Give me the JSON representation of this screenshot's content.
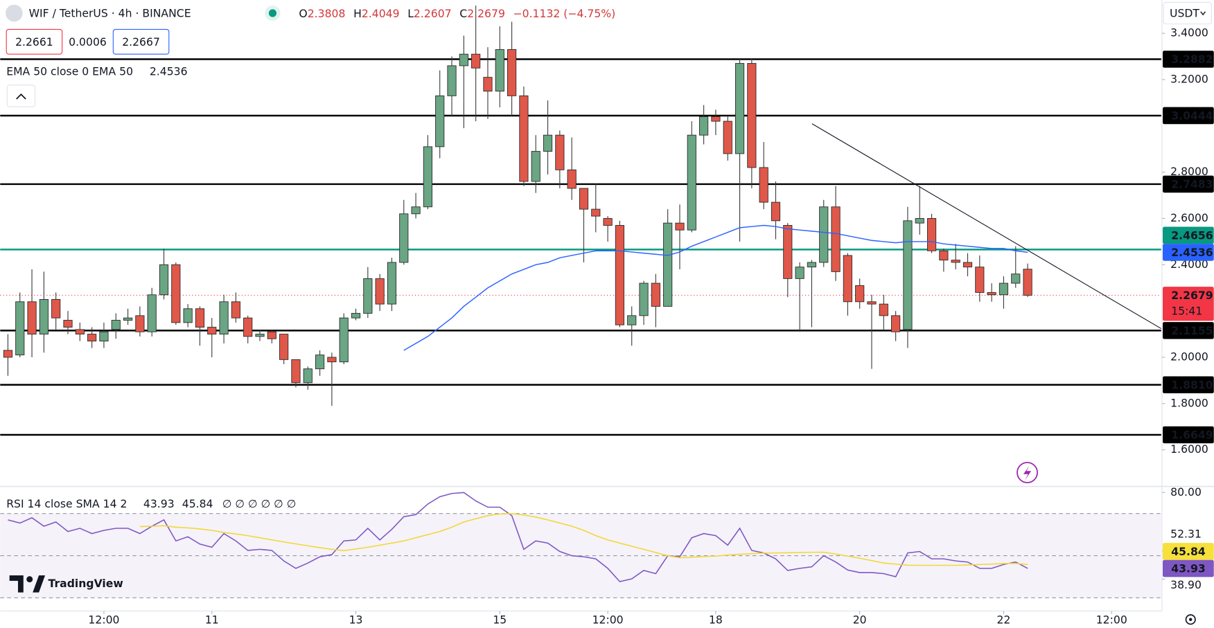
{
  "header": {
    "symbol": "WIF / TetherUS · 4h · BINANCE",
    "ohlc_keys": [
      "O",
      "H",
      "L",
      "C"
    ],
    "change": "−0.1132 (−4.75%)",
    "sell": "2.2661",
    "spread": "0.0006",
    "buy": "2.2667",
    "currency": "USDT",
    "logo": "TradingView"
  },
  "chart_data": [
    {
      "type": "candlestick",
      "open": [
        2.03,
        2.01,
        2.24,
        2.1,
        2.25,
        2.16,
        2.12,
        2.1,
        2.07,
        2.12,
        2.16,
        2.18,
        2.11,
        2.27,
        2.4,
        2.15,
        2.21,
        2.13,
        2.1,
        2.24,
        2.17,
        2.09,
        2.11,
        2.1,
        1.99,
        1.89,
        1.95,
        2.0,
        1.98,
        2.17,
        2.19,
        2.34,
        2.23,
        2.41,
        2.62,
        2.65,
        2.91,
        3.13,
        3.26,
        3.31,
        3.21,
        3.15,
        3.33,
        3.13,
        2.76,
        2.89,
        2.96,
        2.81,
        2.73,
        2.64,
        2.6,
        2.57,
        2.14,
        2.18,
        2.32,
        2.22,
        2.58,
        2.55,
        2.96,
        3.04,
        3.02,
        2.88,
        3.27,
        2.82,
        2.67,
        2.57,
        2.34,
        2.39,
        2.41,
        2.65,
        2.44,
        2.31,
        2.24,
        2.23,
        2.18,
        2.12,
        2.58,
        2.6,
        2.46,
        2.42,
        2.41,
        2.39,
        2.28,
        2.27,
        2.32,
        2.3808
      ],
      "high": [
        2.1,
        2.28,
        2.38,
        2.37,
        2.28,
        2.2,
        2.15,
        2.13,
        2.15,
        2.19,
        2.21,
        2.22,
        2.3,
        2.47,
        2.41,
        2.23,
        2.22,
        2.17,
        2.27,
        2.28,
        2.18,
        2.12,
        2.12,
        2.1,
        1.99,
        1.96,
        2.03,
        2.02,
        2.19,
        2.21,
        2.39,
        2.36,
        2.43,
        2.68,
        2.71,
        2.96,
        3.24,
        3.3,
        3.39,
        3.52,
        3.34,
        3.43,
        3.45,
        3.17,
        2.96,
        3.11,
        2.98,
        2.95,
        2.73,
        2.75,
        2.61,
        2.59,
        2.22,
        2.33,
        2.36,
        2.64,
        2.66,
        3.02,
        3.09,
        3.07,
        3.04,
        3.29,
        3.29,
        2.93,
        2.76,
        2.58,
        2.41,
        2.42,
        2.68,
        2.74,
        2.45,
        2.34,
        2.27,
        2.27,
        2.2,
        2.65,
        2.74,
        2.62,
        2.47,
        2.49,
        2.45,
        2.44,
        2.32,
        2.35,
        2.48,
        2.4049
      ],
      "low": [
        1.92,
        2.0,
        2.0,
        2.02,
        2.12,
        2.1,
        2.07,
        2.04,
        2.04,
        2.08,
        2.14,
        2.09,
        2.09,
        2.25,
        2.14,
        2.13,
        2.05,
        2.0,
        2.06,
        2.15,
        2.06,
        2.07,
        2.06,
        1.97,
        1.87,
        1.86,
        1.92,
        1.79,
        1.97,
        2.16,
        2.17,
        2.2,
        2.2,
        2.4,
        2.6,
        2.64,
        2.86,
        3.04,
        2.99,
        3.02,
        3.03,
        3.08,
        3.04,
        2.74,
        2.71,
        2.79,
        2.73,
        2.68,
        2.41,
        2.54,
        2.5,
        2.13,
        2.05,
        2.14,
        2.13,
        2.22,
        2.38,
        2.54,
        2.92,
        2.96,
        2.85,
        2.5,
        2.73,
        2.64,
        2.51,
        2.26,
        2.11,
        2.13,
        2.39,
        2.33,
        2.18,
        2.21,
        1.95,
        2.12,
        2.07,
        2.04,
        2.53,
        2.45,
        2.37,
        2.38,
        2.35,
        2.24,
        2.24,
        2.21,
        2.3,
        2.2607
      ],
      "close": [
        2.0,
        2.24,
        2.1,
        2.25,
        2.17,
        2.13,
        2.1,
        2.07,
        2.11,
        2.16,
        2.17,
        2.11,
        2.27,
        2.4,
        2.15,
        2.21,
        2.13,
        2.1,
        2.24,
        2.17,
        2.09,
        2.1,
        2.08,
        1.99,
        1.89,
        1.95,
        2.01,
        1.98,
        2.17,
        2.19,
        2.34,
        2.23,
        2.41,
        2.62,
        2.65,
        2.91,
        3.13,
        3.26,
        3.31,
        3.25,
        3.15,
        3.33,
        3.13,
        2.76,
        2.89,
        2.96,
        2.81,
        2.73,
        2.64,
        2.61,
        2.57,
        2.14,
        2.18,
        2.32,
        2.22,
        2.58,
        2.55,
        2.96,
        3.04,
        3.02,
        2.88,
        3.27,
        2.82,
        2.67,
        2.59,
        2.34,
        2.39,
        2.41,
        2.65,
        2.37,
        2.24,
        2.24,
        2.23,
        2.18,
        2.11,
        2.59,
        2.6,
        2.46,
        2.42,
        2.41,
        2.39,
        2.28,
        2.27,
        2.32,
        2.36,
        2.2679
      ],
      "up_color": "#6aa584",
      "down_color": "#e0584a",
      "ema": {
        "name": "EMA 50 close 0 EMA 50",
        "color": "#2962ff",
        "values": [
          null,
          null,
          null,
          null,
          null,
          null,
          null,
          null,
          null,
          null,
          null,
          null,
          null,
          null,
          null,
          null,
          null,
          null,
          null,
          null,
          null,
          null,
          null,
          null,
          null,
          null,
          null,
          null,
          null,
          null,
          null,
          null,
          null,
          2.03,
          2.06,
          2.09,
          2.13,
          2.17,
          2.22,
          2.26,
          2.3,
          2.33,
          2.36,
          2.38,
          2.4,
          2.41,
          2.43,
          2.44,
          2.45,
          2.46,
          2.46,
          2.46,
          2.455,
          2.45,
          2.445,
          2.44,
          2.455,
          2.48,
          2.5,
          2.52,
          2.54,
          2.56,
          2.565,
          2.57,
          2.565,
          2.555,
          2.55,
          2.545,
          2.54,
          2.535,
          2.525,
          2.515,
          2.505,
          2.5,
          2.495,
          2.5,
          2.5,
          2.5,
          2.49,
          2.485,
          2.48,
          2.475,
          2.47,
          2.47,
          2.46,
          2.4536
        ]
      },
      "levels": [
        {
          "value": 3.2882,
          "label": "3.2882"
        },
        {
          "value": 3.0444,
          "label": "3.0444"
        },
        {
          "value": 2.7483,
          "label": "2.7483"
        },
        {
          "value": 2.1155,
          "label": "2.1155"
        },
        {
          "value": 1.881,
          "label": "1.8810"
        },
        {
          "value": 1.6649,
          "label": "1.6649"
        }
      ],
      "level_color": "#000000",
      "support_line": {
        "value": 2.4656,
        "color": "#089981"
      },
      "last_price_color": "#f23645",
      "countdown": "15:41",
      "trendline": {
        "x": [
          67.03,
          96.13
        ],
        "y": [
          3.009,
          2.124
        ]
      },
      "xlim": [
        -0.645,
        96.13
      ],
      "xticks": [
        {
          "value": 8,
          "label": "12:00"
        },
        {
          "value": 17,
          "label": "11"
        },
        {
          "value": 29,
          "label": "13"
        },
        {
          "value": 41,
          "label": "15"
        },
        {
          "value": 50,
          "label": "12:00"
        },
        {
          "value": 59,
          "label": "18"
        },
        {
          "value": 71,
          "label": "20"
        },
        {
          "value": 83,
          "label": "22"
        },
        {
          "value": 92,
          "label": "12:00"
        }
      ],
      "ylim": [
        1.445,
        3.544
      ],
      "yticks": [
        {
          "value": 3.4,
          "label": "3.4000"
        },
        {
          "value": 3.2,
          "label": "3.2000"
        },
        {
          "value": 2.8,
          "label": "2.8000"
        },
        {
          "value": 2.6,
          "label": "2.6000"
        },
        {
          "value": 2.4,
          "label": "2.4000"
        },
        {
          "value": 2.0,
          "label": "2.0000"
        },
        {
          "value": 1.8,
          "label": "1.8000"
        },
        {
          "value": 1.6,
          "label": "1.6000"
        }
      ]
    },
    {
      "type": "line",
      "title": "RSI 14 close SMA 14 2",
      "extra": "∅ ∅ ∅ ∅ ∅ ∅",
      "series": [
        {
          "color": "#7e57c2",
          "values": [
            67,
            65.5,
            68,
            64,
            66,
            61.5,
            63,
            60.5,
            62,
            63,
            63,
            60.5,
            64,
            67,
            57,
            59,
            55.5,
            54,
            60.5,
            57,
            52.5,
            53,
            52.5,
            47.5,
            44,
            46.5,
            49.5,
            50.5,
            57,
            57.5,
            63,
            57.5,
            62.5,
            68.5,
            69.5,
            74.5,
            78,
            79.5,
            80,
            76,
            73,
            73,
            69,
            53,
            57,
            56,
            52,
            50,
            49.5,
            48.5,
            44,
            37.7,
            39,
            43,
            41.5,
            50,
            49.5,
            58.5,
            60.5,
            59.5,
            55,
            63,
            52.5,
            51.3,
            48.5,
            43,
            44,
            44.7,
            50,
            47,
            43.2,
            42,
            42,
            41.5,
            40,
            51.3,
            52,
            48.5,
            48.5,
            47.5,
            47,
            44,
            44,
            45.8,
            47,
            43.93
          ]
        },
        {
          "color": "#f2d833",
          "values": [
            null,
            null,
            null,
            null,
            null,
            null,
            null,
            null,
            null,
            null,
            null,
            63.8,
            64,
            64.2,
            63.5,
            63.2,
            62.7,
            62,
            61,
            60.3,
            59.5,
            58.5,
            57.5,
            56.5,
            55.6,
            54.7,
            53.8,
            53,
            52.4,
            53.2,
            54,
            55,
            56,
            57,
            58.5,
            60,
            61.5,
            63.5,
            66,
            67.5,
            69,
            69.8,
            70,
            69.3,
            68.3,
            67,
            65.5,
            64,
            62,
            59.5,
            57.5,
            56,
            54.5,
            53,
            51.5,
            50,
            49,
            49.3,
            49.6,
            49.8,
            50.3,
            50.7,
            51,
            51.2,
            51.3,
            51.4,
            51.5,
            51.6,
            51.6,
            50.8,
            49.8,
            48.8,
            47.7,
            46.5,
            46,
            45.5,
            45.4,
            45.4,
            45.4,
            45.4,
            45.6,
            45.8,
            46,
            46.3,
            46.3,
            45.84
          ]
        }
      ],
      "band": [
        30,
        70
      ],
      "levels": [
        70,
        50,
        30
      ],
      "ylim": [
        23.76,
        82.48
      ],
      "yticks": [
        {
          "value": 80,
          "label": "80.00"
        },
        {
          "value": 52.31,
          "label": "52.31"
        },
        {
          "value": 38.9,
          "label": "38.90"
        }
      ]
    }
  ]
}
